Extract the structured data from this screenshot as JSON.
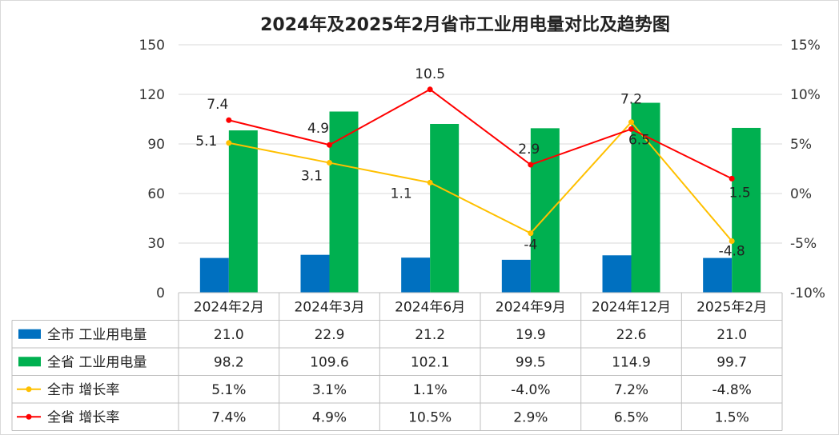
{
  "chart_data": {
    "type": "bar",
    "title": "2024年及2025年2月省市工业用电量对比及趋势图",
    "categories": [
      "2024年2月",
      "2024年3月",
      "2024年6月",
      "2024年9月",
      "2024年12月",
      "2025年2月"
    ],
    "y_left": {
      "min": 0,
      "max": 150,
      "step": 30,
      "ticks": [
        "0",
        "30",
        "60",
        "90",
        "120",
        "150"
      ]
    },
    "y_right": {
      "min": -10,
      "max": 15,
      "step": 5,
      "ticks": [
        "-10%",
        "-5%",
        "0%",
        "5%",
        "10%",
        "15%"
      ]
    },
    "series": [
      {
        "name": "全市 工业用电量",
        "type": "bar",
        "axis": "left",
        "color": "#0070c0",
        "values": [
          21.0,
          22.9,
          21.2,
          19.9,
          22.6,
          21.0
        ],
        "table": [
          "21.0",
          "22.9",
          "21.2",
          "19.9",
          "22.6",
          "21.0"
        ]
      },
      {
        "name": "全省 工业用电量",
        "type": "bar",
        "axis": "left",
        "color": "#00b050",
        "values": [
          98.2,
          109.6,
          102.1,
          99.5,
          114.9,
          99.7
        ],
        "table": [
          "98.2",
          "109.6",
          "102.1",
          "99.5",
          "114.9",
          "99.7"
        ]
      },
      {
        "name": "全市 增长率",
        "type": "line",
        "axis": "right",
        "color": "#ffc000",
        "values": [
          5.1,
          3.1,
          1.1,
          -4.0,
          7.2,
          -4.8
        ],
        "labels": [
          "5.1",
          "3.1",
          "1.1",
          "-4",
          "7.2",
          "-4.8"
        ],
        "table": [
          "5.1%",
          "3.1%",
          "1.1%",
          "-4.0%",
          "7.2%",
          "-4.8%"
        ]
      },
      {
        "name": "全省 增长率",
        "type": "line",
        "axis": "right",
        "color": "#ff0000",
        "values": [
          7.4,
          4.9,
          10.5,
          2.9,
          6.5,
          1.5
        ],
        "labels": [
          "7.4",
          "4.9",
          "10.5",
          "2.9",
          "6.5",
          "1.5"
        ],
        "table": [
          "7.4%",
          "4.9%",
          "10.5%",
          "2.9%",
          "6.5%",
          "1.5%"
        ]
      }
    ]
  }
}
